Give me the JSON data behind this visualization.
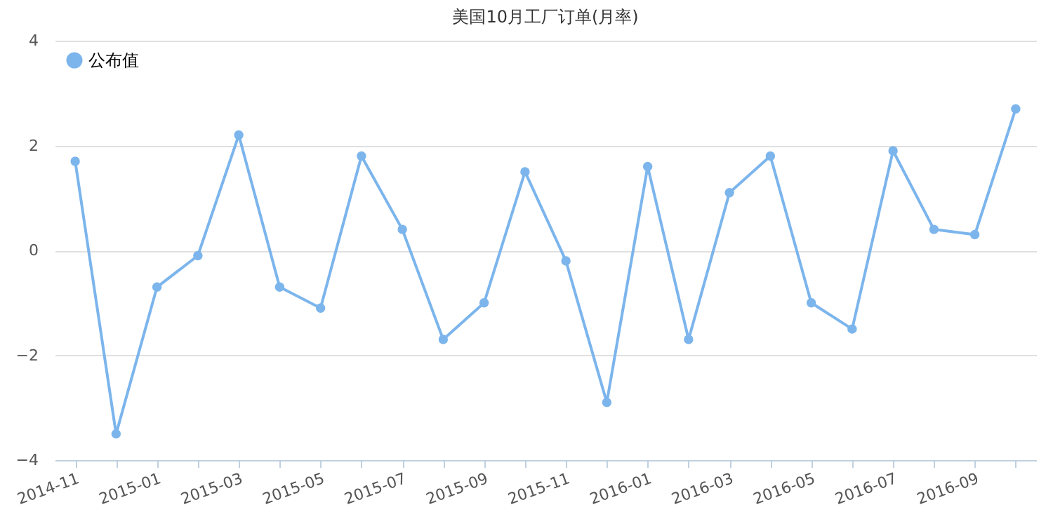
{
  "chart_data": {
    "type": "line",
    "title": "美国10月工厂订单(月率)",
    "categories": [
      "2014-11",
      null,
      "2015-01",
      null,
      "2015-03",
      null,
      "2015-05",
      null,
      "2015-07",
      null,
      "2015-09",
      null,
      "2015-11",
      null,
      "2016-01",
      null,
      "2016-03",
      null,
      "2016-05",
      null,
      "2016-07",
      null,
      "2016-09",
      null
    ],
    "series": [
      {
        "name": "公布值",
        "color": "#7cb5ec",
        "values": [
          1.7,
          -3.5,
          -0.7,
          -0.1,
          2.2,
          -0.7,
          -1.1,
          1.8,
          0.4,
          -1.7,
          -1.0,
          1.5,
          -0.2,
          -2.9,
          1.6,
          -1.7,
          1.1,
          1.8,
          -1.0,
          -1.5,
          1.9,
          0.4,
          0.3,
          2.7
        ]
      }
    ],
    "ylim": [
      -4,
      4
    ],
    "yticks": [
      -4,
      -2,
      0,
      2,
      4
    ],
    "grid": "y",
    "legend": "top left",
    "marker": "circle",
    "line_style": "solid"
  }
}
